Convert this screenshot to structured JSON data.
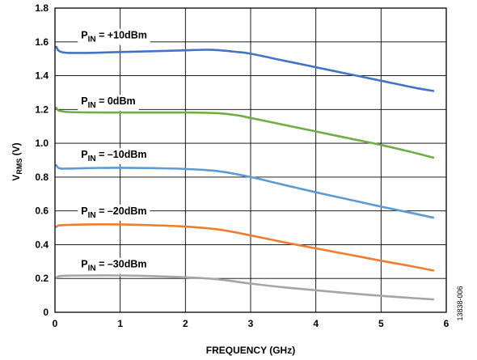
{
  "chart_data": {
    "type": "line",
    "xlabel": "FREQUENCY (GHz)",
    "ylabel": {
      "main": "V",
      "sub": "RMS",
      "unit": " (V)"
    },
    "xlim": [
      0,
      6
    ],
    "ylim": [
      0,
      1.8
    ],
    "xticks": [
      0,
      1,
      2,
      3,
      4,
      5,
      6
    ],
    "xtick_labels": [
      "0",
      "1",
      "2",
      "3",
      "4",
      "5",
      "6"
    ],
    "yticks": [
      0,
      0.2,
      0.4,
      0.6,
      0.8,
      1.0,
      1.2,
      1.4,
      1.6,
      1.8
    ],
    "ytick_labels": [
      "0",
      "0.2",
      "0.4",
      "0.6",
      "0.8",
      "1.0",
      "1.2",
      "1.4",
      "1.6",
      "1.8"
    ],
    "grid": true,
    "series": [
      {
        "name": "PIN = +10dBm",
        "label_main": "P",
        "label_sub": "IN",
        "label_rest": " = +10dBm",
        "label_at": [
          0.4,
          1.62
        ],
        "color": "#4472c4",
        "x": [
          0.02,
          0.05,
          0.1,
          0.2,
          0.5,
          1.0,
          1.5,
          2.0,
          2.4,
          2.8,
          3.0,
          3.5,
          4.0,
          4.5,
          5.0,
          5.5,
          5.8
        ],
        "y": [
          1.57,
          1.55,
          1.54,
          1.535,
          1.535,
          1.54,
          1.545,
          1.55,
          1.553,
          1.54,
          1.53,
          1.49,
          1.45,
          1.41,
          1.37,
          1.33,
          1.31
        ]
      },
      {
        "name": "PIN = 0dBm",
        "label_main": "P",
        "label_sub": "IN",
        "label_rest": " = 0dBm",
        "label_at": [
          0.4,
          1.23
        ],
        "color": "#70ad47",
        "x": [
          0.02,
          0.05,
          0.1,
          0.2,
          0.5,
          1.0,
          1.5,
          2.0,
          2.5,
          2.8,
          3.0,
          3.5,
          4.0,
          4.5,
          5.0,
          5.5,
          5.8
        ],
        "y": [
          1.21,
          1.195,
          1.19,
          1.185,
          1.183,
          1.182,
          1.182,
          1.182,
          1.178,
          1.165,
          1.15,
          1.11,
          1.07,
          1.03,
          0.99,
          0.945,
          0.915
        ]
      },
      {
        "name": "PIN = –10dBm",
        "label_main": "P",
        "label_sub": "IN",
        "label_rest": " = –10dBm",
        "label_at": [
          0.4,
          0.915
        ],
        "color": "#5b9bd5",
        "x": [
          0.02,
          0.05,
          0.1,
          0.2,
          0.5,
          1.0,
          1.5,
          2.0,
          2.5,
          3.0,
          3.5,
          4.0,
          4.5,
          5.0,
          5.5,
          5.8
        ],
        "y": [
          0.87,
          0.855,
          0.85,
          0.85,
          0.853,
          0.855,
          0.853,
          0.848,
          0.835,
          0.8,
          0.755,
          0.71,
          0.668,
          0.625,
          0.585,
          0.56
        ]
      },
      {
        "name": "PIN = –20dBm",
        "label_main": "P",
        "label_sub": "IN",
        "label_rest": " = –20dBm",
        "label_at": [
          0.4,
          0.58
        ],
        "color": "#ed7d31",
        "x": [
          0.02,
          0.05,
          0.1,
          0.2,
          0.5,
          1.0,
          1.5,
          2.0,
          2.5,
          3.0,
          3.5,
          4.0,
          4.5,
          5.0,
          5.5,
          5.8
        ],
        "y": [
          0.505,
          0.513,
          0.515,
          0.517,
          0.52,
          0.52,
          0.515,
          0.507,
          0.49,
          0.455,
          0.415,
          0.378,
          0.342,
          0.305,
          0.27,
          0.247
        ]
      },
      {
        "name": "PIN = –30dBm",
        "label_main": "P",
        "label_sub": "IN",
        "label_rest": " = –30dBm",
        "label_at": [
          0.4,
          0.265
        ],
        "color": "#a5a5a5",
        "x": [
          0.02,
          0.05,
          0.1,
          0.2,
          0.5,
          1.0,
          1.5,
          2.0,
          2.5,
          3.0,
          3.5,
          4.0,
          4.5,
          5.0,
          5.5,
          5.8
        ],
        "y": [
          0.205,
          0.212,
          0.215,
          0.217,
          0.218,
          0.218,
          0.214,
          0.207,
          0.195,
          0.17,
          0.148,
          0.13,
          0.113,
          0.097,
          0.084,
          0.076
        ]
      }
    ]
  },
  "side_note": "13838-006"
}
